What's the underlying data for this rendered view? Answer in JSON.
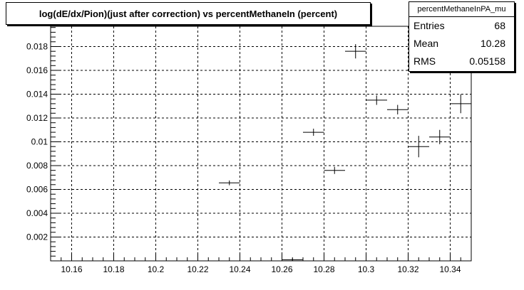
{
  "chart_data": {
    "type": "scatter",
    "title": "log(dE/dx/Pion)(just after correction) vs percentMethaneIn (percent)",
    "xlim": [
      10.15,
      10.35
    ],
    "ylim": [
      0,
      0.0197
    ],
    "grid": true,
    "x_ticks": [
      "10.16",
      "10.18",
      "10.2",
      "10.22",
      "10.24",
      "10.26",
      "10.28",
      "10.3",
      "10.32",
      "10.34"
    ],
    "y_ticks": [
      "0.002",
      "0.004",
      "0.006",
      "0.008",
      "0.01",
      "0.012",
      "0.014",
      "0.016",
      "0.018"
    ],
    "points": [
      {
        "x": 10.235,
        "y": 0.00655,
        "xerr": 0.005,
        "yerr": 0.0002
      },
      {
        "x": 10.265,
        "y": 0.0001,
        "xerr": 0.005,
        "yerr": 0.0001
      },
      {
        "x": 10.275,
        "y": 0.0108,
        "xerr": 0.005,
        "yerr": 0.0003
      },
      {
        "x": 10.285,
        "y": 0.0076,
        "xerr": 0.005,
        "yerr": 0.0003
      },
      {
        "x": 10.295,
        "y": 0.0176,
        "xerr": 0.005,
        "yerr": 0.0006
      },
      {
        "x": 10.305,
        "y": 0.0135,
        "xerr": 0.005,
        "yerr": 0.0004
      },
      {
        "x": 10.315,
        "y": 0.0127,
        "xerr": 0.005,
        "yerr": 0.0004
      },
      {
        "x": 10.325,
        "y": 0.0096,
        "xerr": 0.005,
        "yerr": 0.0009
      },
      {
        "x": 10.335,
        "y": 0.0104,
        "xerr": 0.005,
        "yerr": 0.0006
      },
      {
        "x": 10.345,
        "y": 0.0132,
        "xerr": 0.005,
        "yerr": 0.0008
      }
    ]
  },
  "stats": {
    "title": "percentMethaneInPA_mu",
    "rows": [
      {
        "label": "Entries",
        "value": "68"
      },
      {
        "label": "Mean",
        "value": "10.28"
      },
      {
        "label": "RMS",
        "value": "0.05158"
      }
    ]
  }
}
